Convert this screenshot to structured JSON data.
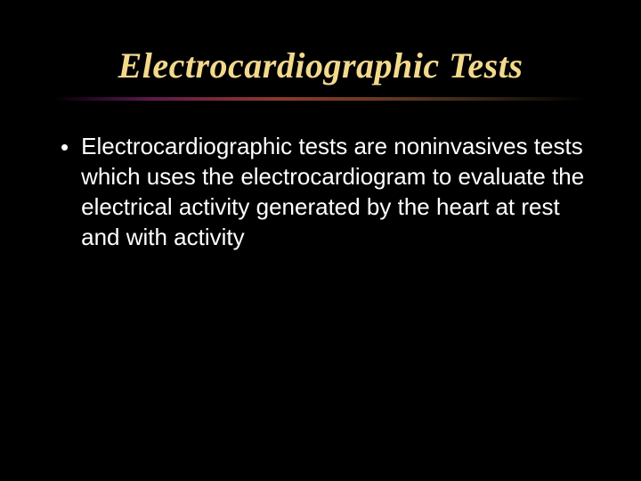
{
  "slide": {
    "title": "Electrocardiographic Tests",
    "bullets": [
      "Electrocardiographic tests are noninvasives tests which uses the electrocardiogram to evaluate the electrical activity generated by the heart at rest and with activity"
    ]
  },
  "styling": {
    "background_color": "#000000",
    "title_color": "#f2d98c",
    "title_font": "Times New Roman italic",
    "title_fontsize": 40,
    "body_color": "#ffffff",
    "body_font": "Arial",
    "body_fontsize": 26,
    "line_height": 34,
    "accent_gradient": [
      "#000000",
      "#2a0a2a",
      "#5a1a4a",
      "#7a2838",
      "#8a3a28",
      "#6a3a20",
      "#3a2a15",
      "#000000"
    ],
    "slide_width": 720,
    "slide_height": 540
  }
}
